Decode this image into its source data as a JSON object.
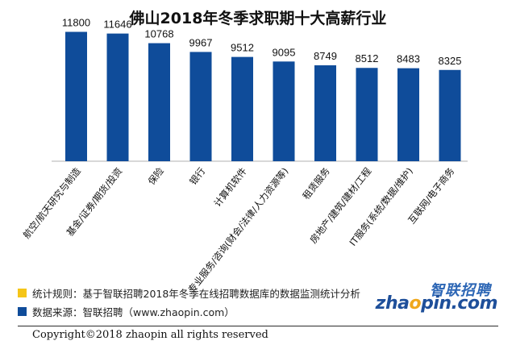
{
  "chart_data": {
    "type": "bar",
    "title": "佛山2018年冬季求职期十大高薪行业",
    "categories": [
      "航空/航天研究与制造",
      "基金/证券/期货/投资",
      "保险",
      "银行",
      "计算机软件",
      "专业服务/咨询(财会/法律/人力资源等)",
      "租赁服务",
      "房地产/建筑/建材/工程",
      "IT服务(系统/数据/维护)",
      "互联网/电子商务"
    ],
    "values": [
      11800,
      11646,
      10768,
      9967,
      9512,
      9095,
      8749,
      8512,
      8483,
      8325
    ],
    "value_labels": [
      "11800",
      "11646",
      "10768",
      "9967",
      "9512",
      "9095",
      "8749",
      "8512",
      "8483",
      "8325"
    ],
    "ylim": [
      0,
      12500
    ],
    "grid": false,
    "bar_color": "#0f4c9a"
  },
  "legend": [
    {
      "label": "统计规则：基于智联招聘2018年冬季在线招聘数据库的数据监测统计分析",
      "color": "#f5c518"
    },
    {
      "label": "数据来源：智联招聘（www.zhaopin.com）",
      "color": "#0f4c9a"
    }
  ],
  "logo": {
    "cn": "智联招聘",
    "en_pre": "zha",
    "en_accent": "o",
    "en_post": "pin.com"
  },
  "footer": {
    "copyright": "Copyright©2018 zhaopin all rights reserved"
  }
}
